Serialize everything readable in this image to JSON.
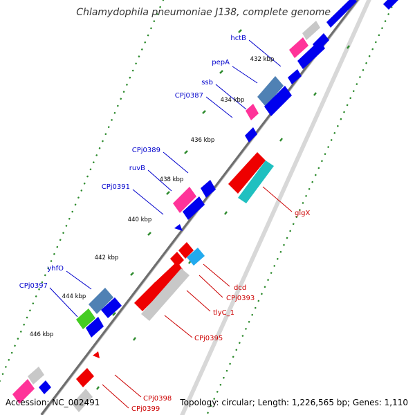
{
  "map": {
    "title": "Chlamydophila pneumoniae J138, complete genome",
    "accession": "Accession: NC_002491",
    "summary": "Topology: circular; Length: 1,226,565 bp; Genes: 1,110",
    "colors": {
      "forward_label": "#0000cc",
      "reverse_label": "#cc0000",
      "backbone": "#7f7f7f",
      "tick": "#2e8b2e",
      "forward_cds": "#0000ee",
      "reverse_cds": "#ee0000",
      "rna": "#ff3399",
      "grey_feature": "#c8c8c8",
      "steel_feature": "#4f81b4",
      "cyan_feature": "#20c0c0",
      "light_blue_feature": "#22aaee",
      "green_feature": "#44cc22"
    }
  },
  "kbp_labels": [
    "432 kbp",
    "434 kbp",
    "436 kbp",
    "438 kbp",
    "440 kbp",
    "442 kbp",
    "444 kbp",
    "446 kbp"
  ],
  "forward_genes": [
    "hctB",
    "pepA",
    "ssb",
    "CPj0387",
    "CPj0389",
    "ruvB",
    "CPj0391",
    "yhfO",
    "CPj0397"
  ],
  "reverse_genes": [
    "glgX",
    "dcd",
    "CPj0393",
    "tlyC_1",
    "CPj0395",
    "CPj0398",
    "CPj0399"
  ]
}
